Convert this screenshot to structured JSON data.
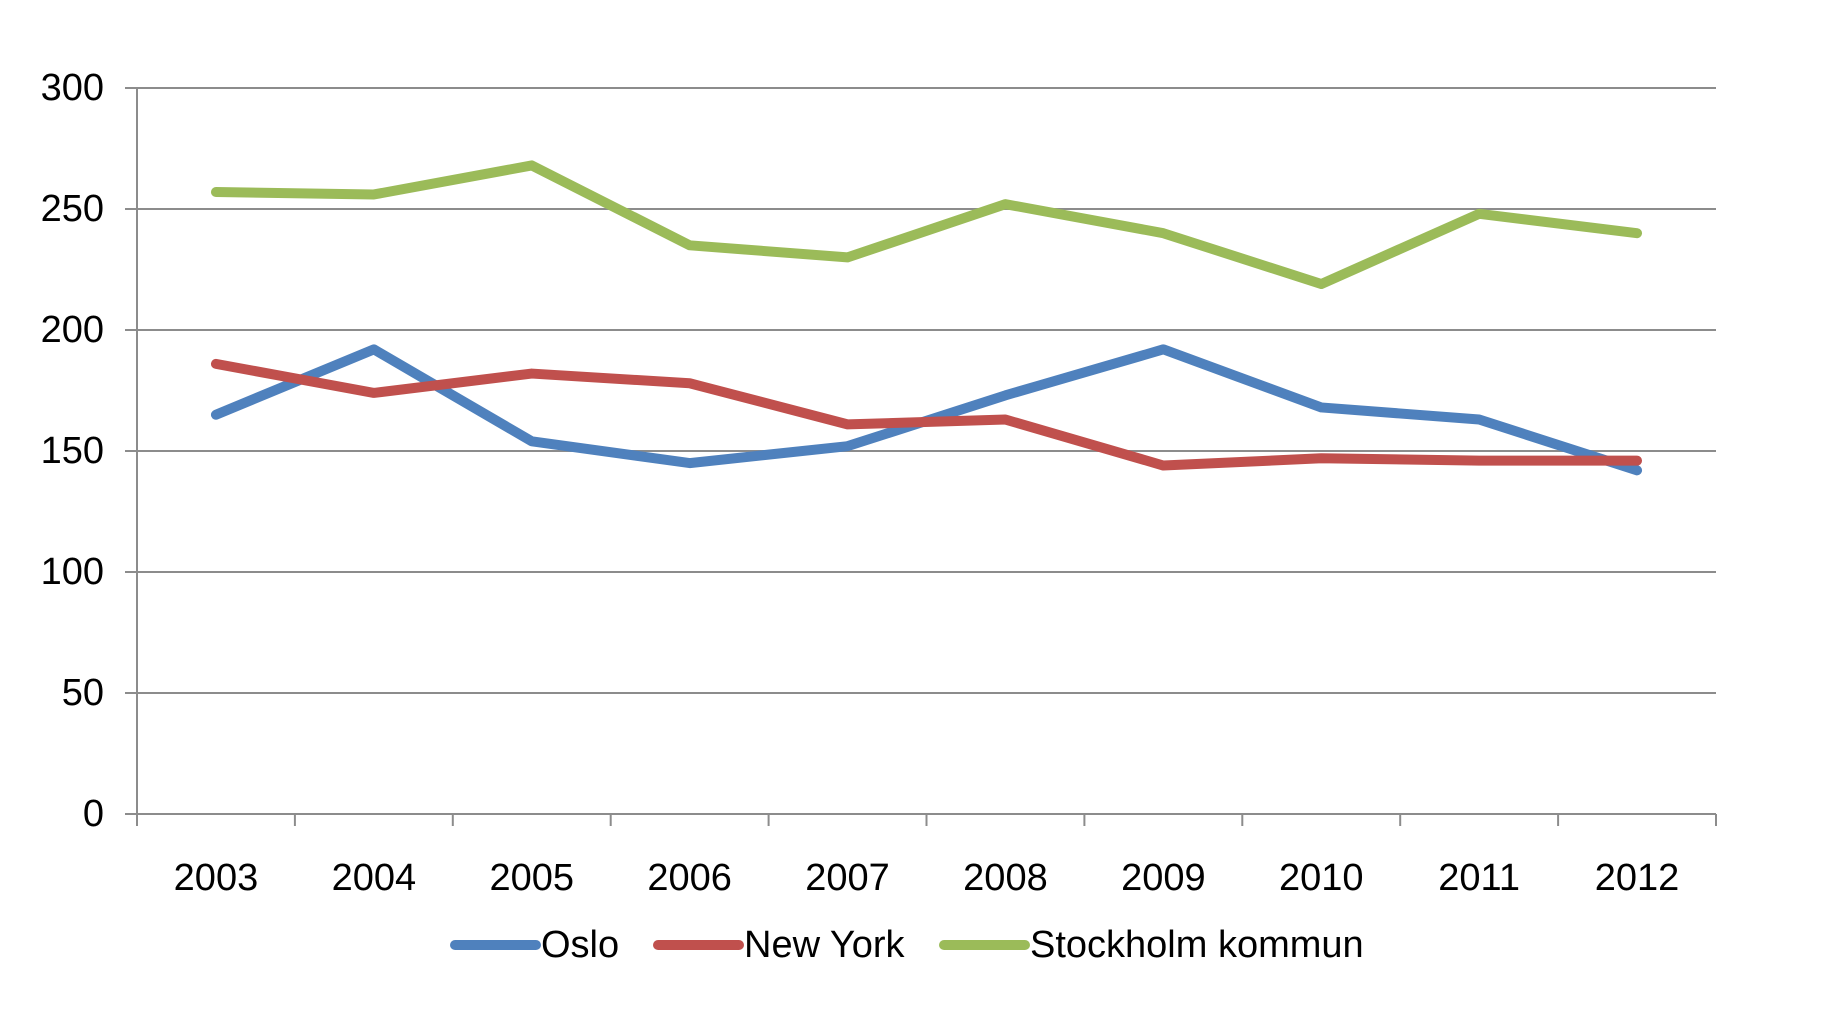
{
  "chart_data": {
    "type": "line",
    "title": "",
    "xlabel": "",
    "ylabel": "",
    "categories": [
      "2003",
      "2004",
      "2005",
      "2006",
      "2007",
      "2008",
      "2009",
      "2010",
      "2011",
      "2012"
    ],
    "series": [
      {
        "name": "Oslo",
        "color": "#4F81BD",
        "values": [
          165,
          192,
          154,
          145,
          152,
          173,
          192,
          168,
          163,
          142
        ]
      },
      {
        "name": "New York",
        "color": "#C0504D",
        "values": [
          186,
          174,
          182,
          178,
          161,
          163,
          144,
          147,
          146,
          146
        ]
      },
      {
        "name": "Stockholm kommun",
        "color": "#9BBB59",
        "values": [
          257,
          256,
          268,
          235,
          230,
          252,
          240,
          219,
          248,
          240
        ]
      }
    ],
    "ylim": [
      0,
      300
    ],
    "yticks": [
      0,
      50,
      100,
      150,
      200,
      250,
      300
    ],
    "grid": true,
    "legend_position": "bottom",
    "axis_color": "#8C8C8C",
    "text_color": "#000000",
    "background_color": "#FFFFFF"
  }
}
